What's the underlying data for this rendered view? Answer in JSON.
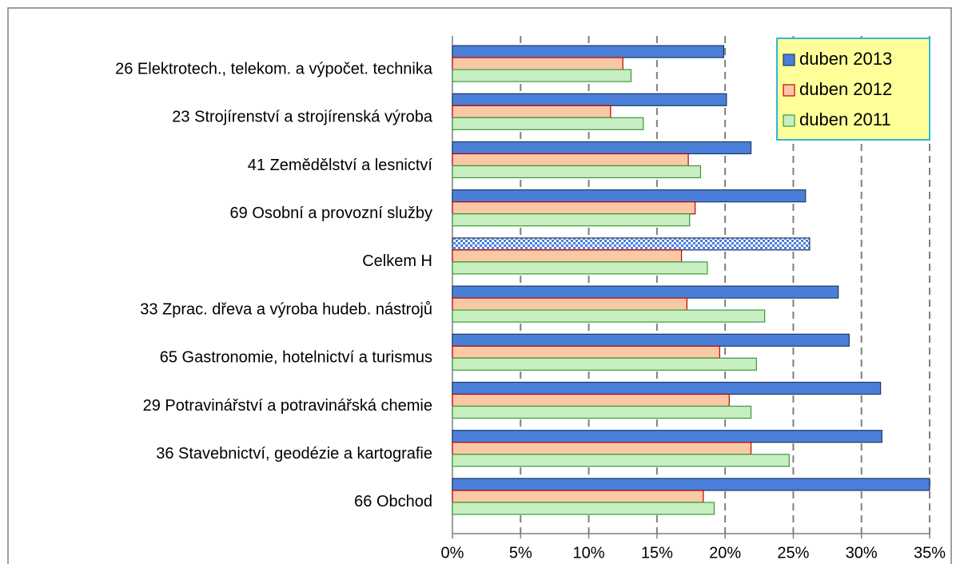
{
  "chart_data": {
    "type": "bar",
    "orientation": "horizontal",
    "categories": [
      "26 Elektrotech., telekom. a výpočet. technika",
      "23 Strojírenství a strojírenská výroba",
      "41 Zemědělství a lesnictví",
      "69 Osobní a provozní služby",
      "Celkem H",
      "33 Zprac. dřeva a výroba hudeb. nástrojů",
      "65 Gastronomie, hotelnictví a turismus",
      "29 Potravinářství a potravinářská chemie",
      "36 Stavebnictví, geodézie a kartografie",
      "66 Obchod"
    ],
    "series": [
      {
        "name": "duben 2013",
        "color": "#4a7fd9",
        "border": "#1f3864",
        "patterned_categories": [
          4
        ],
        "values": [
          19.9,
          20.1,
          21.9,
          25.9,
          26.2,
          28.3,
          29.1,
          31.4,
          31.5,
          35.0
        ]
      },
      {
        "name": "duben 2012",
        "color": "#f9c9a6",
        "border": "#c00000",
        "values": [
          12.5,
          11.6,
          17.3,
          17.8,
          16.8,
          17.2,
          19.6,
          20.3,
          21.9,
          18.4
        ]
      },
      {
        "name": "duben 2011",
        "color": "#c7efc2",
        "border": "#3a9a3a",
        "values": [
          13.1,
          14.0,
          18.2,
          17.4,
          18.7,
          22.9,
          22.3,
          21.9,
          24.7,
          19.2
        ]
      }
    ],
    "xlim": [
      0,
      35
    ],
    "xticks": [
      {
        "value": 0,
        "label": "0%"
      },
      {
        "value": 5,
        "label": "5%"
      },
      {
        "value": 10,
        "label": "10%"
      },
      {
        "value": 15,
        "label": "15%"
      },
      {
        "value": 20,
        "label": "20%"
      },
      {
        "value": 25,
        "label": "25%"
      },
      {
        "value": 30,
        "label": "30%"
      },
      {
        "value": 35,
        "label": "35%"
      }
    ],
    "grid": true,
    "legend": "top-right"
  }
}
